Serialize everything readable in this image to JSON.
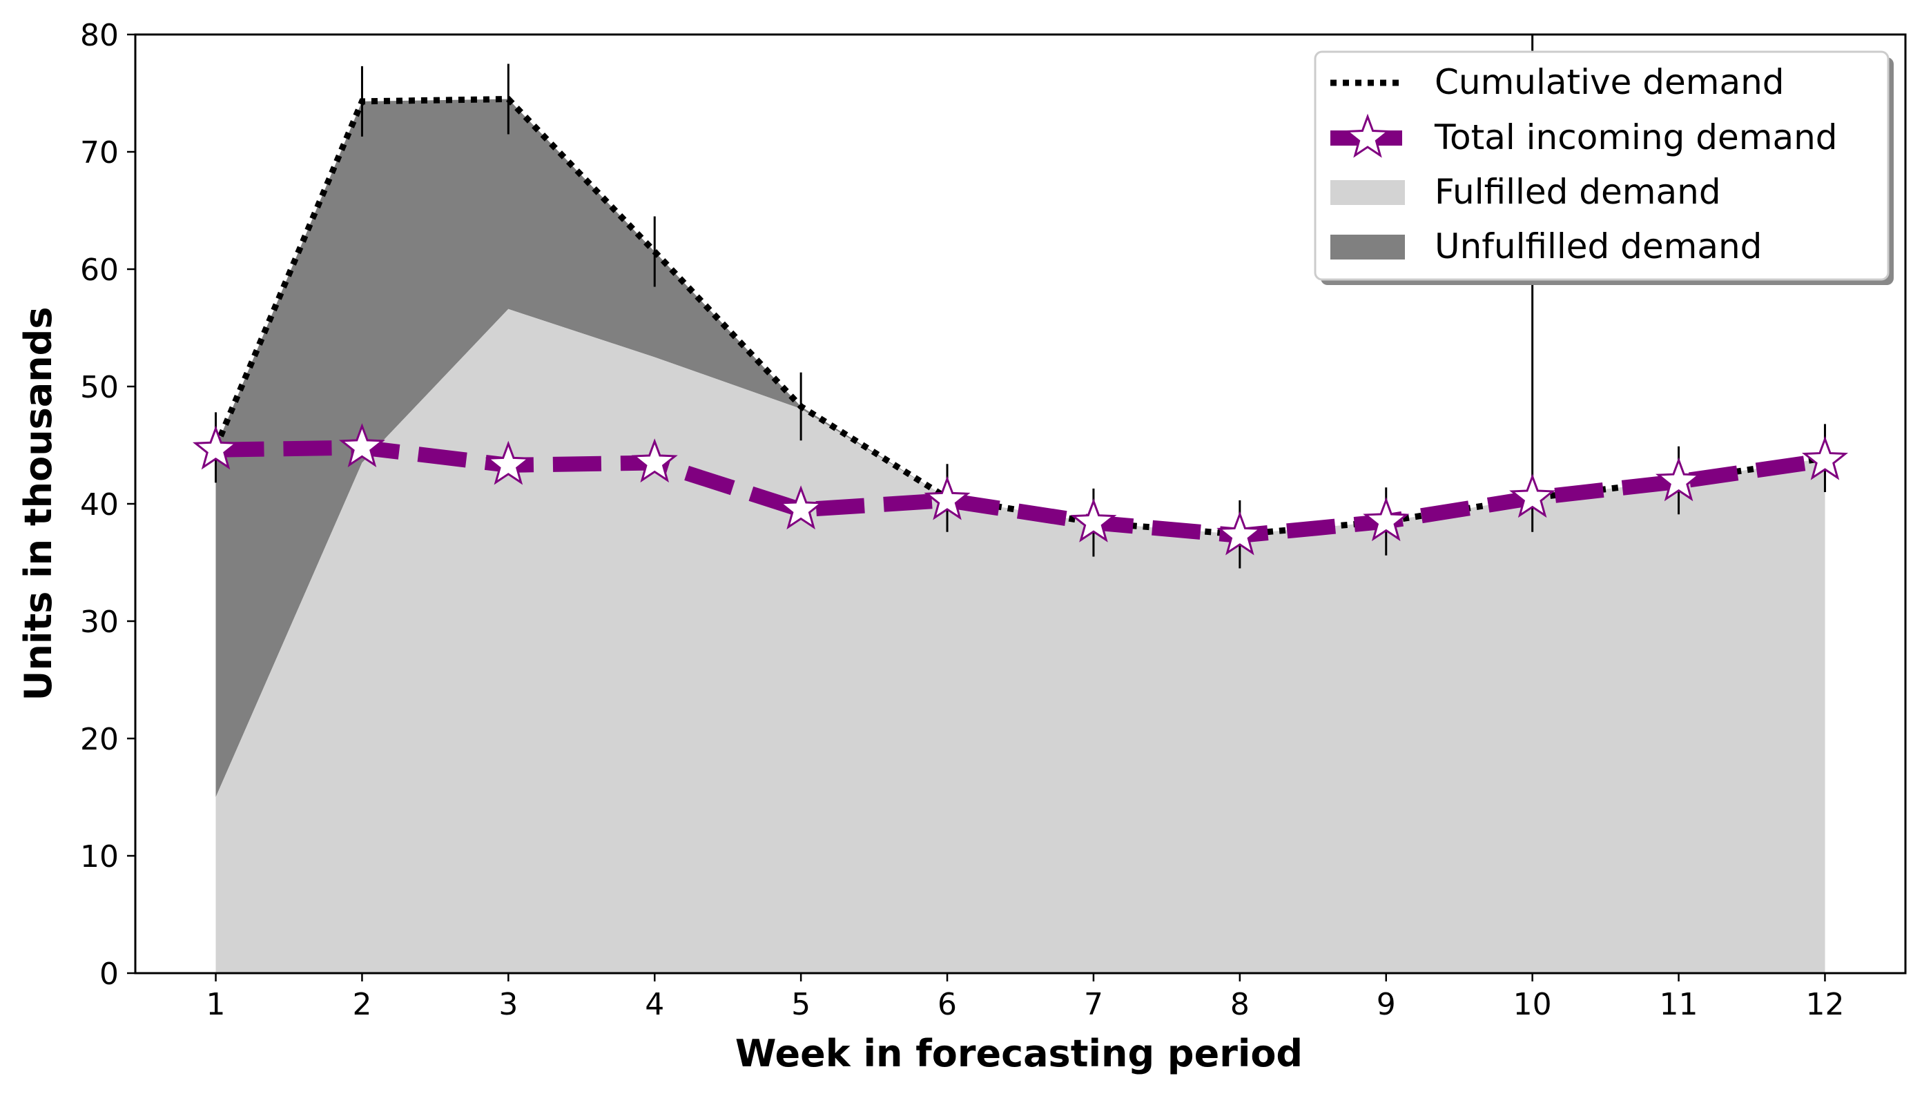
{
  "chart_data": {
    "type": "area",
    "xlabel": "Week in forecasting period",
    "ylabel": "Units in thousands",
    "xlim": [
      0.45,
      12.55
    ],
    "ylim": [
      0,
      80
    ],
    "x": [
      1,
      2,
      3,
      4,
      5,
      6,
      7,
      8,
      9,
      10,
      11,
      12
    ],
    "x_tick_labels": [
      "1",
      "2",
      "3",
      "4",
      "5",
      "6",
      "7",
      "8",
      "9",
      "10",
      "11",
      "12"
    ],
    "y_ticks": [
      0,
      10,
      20,
      30,
      40,
      50,
      60,
      70,
      80
    ],
    "y_tick_labels": [
      "0",
      "10",
      "20",
      "30",
      "40",
      "50",
      "60",
      "70",
      "80"
    ],
    "grid": false,
    "legend_position": "top-right",
    "series": [
      {
        "name": "Cumulative demand",
        "kind": "line",
        "style": "dotted",
        "color": "#000000",
        "values": [
          44.8,
          74.3,
          74.5,
          61.5,
          48.3,
          40.5,
          38.4,
          37.4,
          38.5,
          40.5,
          42.0,
          43.9
        ],
        "error": [
          3.0,
          3.0,
          3.0,
          3.0,
          2.9,
          2.9,
          2.9,
          2.9,
          2.9,
          2.9,
          2.9,
          2.9
        ],
        "error_upper_override": {
          "9": 80
        }
      },
      {
        "name": "Total incoming demand",
        "kind": "line",
        "style": "dashed",
        "color": "#800080",
        "marker": "star",
        "values": [
          44.6,
          44.8,
          43.3,
          43.5,
          39.5,
          40.3,
          38.4,
          37.3,
          38.5,
          40.5,
          41.9,
          43.7
        ]
      },
      {
        "name": "Fulfilled demand",
        "kind": "area",
        "color": "#d3d3d3",
        "values": [
          15.0,
          43.5,
          56.6,
          52.5,
          48.1,
          40.5,
          38.4,
          37.4,
          38.5,
          40.5,
          42.0,
          43.9
        ]
      },
      {
        "name": "Unfulfilled demand",
        "kind": "area",
        "color": "#808080",
        "values": [
          29.8,
          30.8,
          17.9,
          9.0,
          0.2,
          0.0,
          0.0,
          0.0,
          0.0,
          0.0,
          0.0,
          0.0
        ]
      }
    ],
    "legend": [
      {
        "label": "Cumulative demand",
        "swatch": "dotted-line",
        "color": "#000000"
      },
      {
        "label": "Total incoming demand",
        "swatch": "dashed-line-star",
        "color": "#800080"
      },
      {
        "label": "Fulfilled demand",
        "swatch": "patch",
        "color": "#d3d3d3"
      },
      {
        "label": "Unfulfilled demand",
        "swatch": "patch",
        "color": "#808080"
      }
    ]
  }
}
